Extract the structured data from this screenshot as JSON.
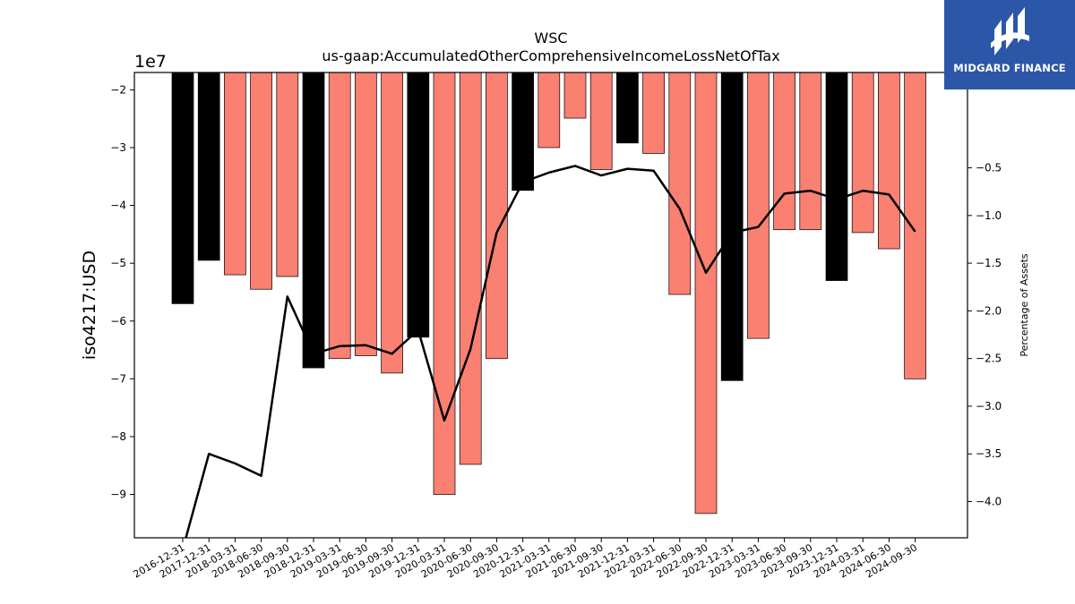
{
  "brand": {
    "name": "MIDGARD FINANCE",
    "logo_icon": "midgard-logo-icon"
  },
  "colors": {
    "annual_bar": "#000000",
    "quarter_bar": "#fa8072",
    "line": "#000000",
    "logo_bg": "#2c57a8"
  },
  "chart_data": {
    "type": "bar",
    "title": "WSC",
    "subtitle": "us-gaap:AccumulatedOtherComprehensiveIncomeLossNetOfTax",
    "ylabel": "iso4217:USD",
    "y_offset_label": "1e7",
    "y2label": "Percentage of Assets",
    "ylim": [
      -97500000,
      -17000000
    ],
    "y2lim": [
      -4.38,
      0.5
    ],
    "yticks": [
      -20000000,
      -30000000,
      -40000000,
      -50000000,
      -60000000,
      -70000000,
      -80000000,
      -90000000
    ],
    "yticklabels": [
      "−2",
      "−3",
      "−4",
      "−5",
      "−6",
      "−7",
      "−8",
      "−9"
    ],
    "y2ticks": [
      -0.5,
      -1.0,
      -1.5,
      -2.0,
      -2.5,
      -3.0,
      -3.5,
      -4.0
    ],
    "y2ticklabels": [
      "−0.5",
      "−1.0",
      "−1.5",
      "−2.0",
      "−2.5",
      "−3.0",
      "−3.5",
      "−4.0"
    ],
    "categories": [
      "2016-12-31",
      "2017-12-31",
      "2018-03-31",
      "2018-06-30",
      "2018-09-30",
      "2018-12-31",
      "2019-03-31",
      "2019-06-30",
      "2019-09-30",
      "2019-12-31",
      "2020-03-31",
      "2020-06-30",
      "2020-09-30",
      "2020-12-31",
      "2021-03-31",
      "2021-06-30",
      "2021-09-30",
      "2021-12-31",
      "2022-03-31",
      "2022-06-30",
      "2022-09-30",
      "2022-12-31",
      "2023-03-31",
      "2023-06-30",
      "2023-09-30",
      "2023-12-31",
      "2024-03-31",
      "2024-06-30",
      "2024-09-30"
    ],
    "series": [
      {
        "values": [
          -57000000,
          -49500000,
          -52000000,
          -54500000,
          -52300000,
          -68100000,
          -66500000,
          -66000000,
          -69000000,
          -62800000,
          -90000000,
          -84800000,
          -66500000,
          -37400000,
          -30000000,
          -24900000,
          -33800000,
          -29200000,
          -31000000,
          -55400000,
          -93300000,
          -70300000,
          -63000000,
          -44200000,
          -44200000,
          -53000000,
          -44700000,
          -47500000,
          -70000000
        ],
        "annual": [
          true,
          true,
          false,
          false,
          false,
          true,
          false,
          false,
          false,
          true,
          false,
          false,
          false,
          true,
          false,
          false,
          false,
          true,
          false,
          false,
          false,
          true,
          false,
          false,
          false,
          true,
          false,
          false,
          false
        ]
      },
      {
        "values": [
          -4.5,
          -3.5,
          -3.6,
          -3.73,
          -1.85,
          -2.45,
          -2.37,
          -2.36,
          -2.45,
          -2.2,
          -3.15,
          -2.4,
          -1.18,
          -0.65,
          -0.55,
          -0.48,
          -0.58,
          -0.51,
          -0.53,
          -0.93,
          -1.6,
          -1.18,
          -1.12,
          -0.77,
          -0.74,
          -0.83,
          -0.74,
          -0.78,
          -1.17
        ]
      }
    ],
    "grid": false
  }
}
